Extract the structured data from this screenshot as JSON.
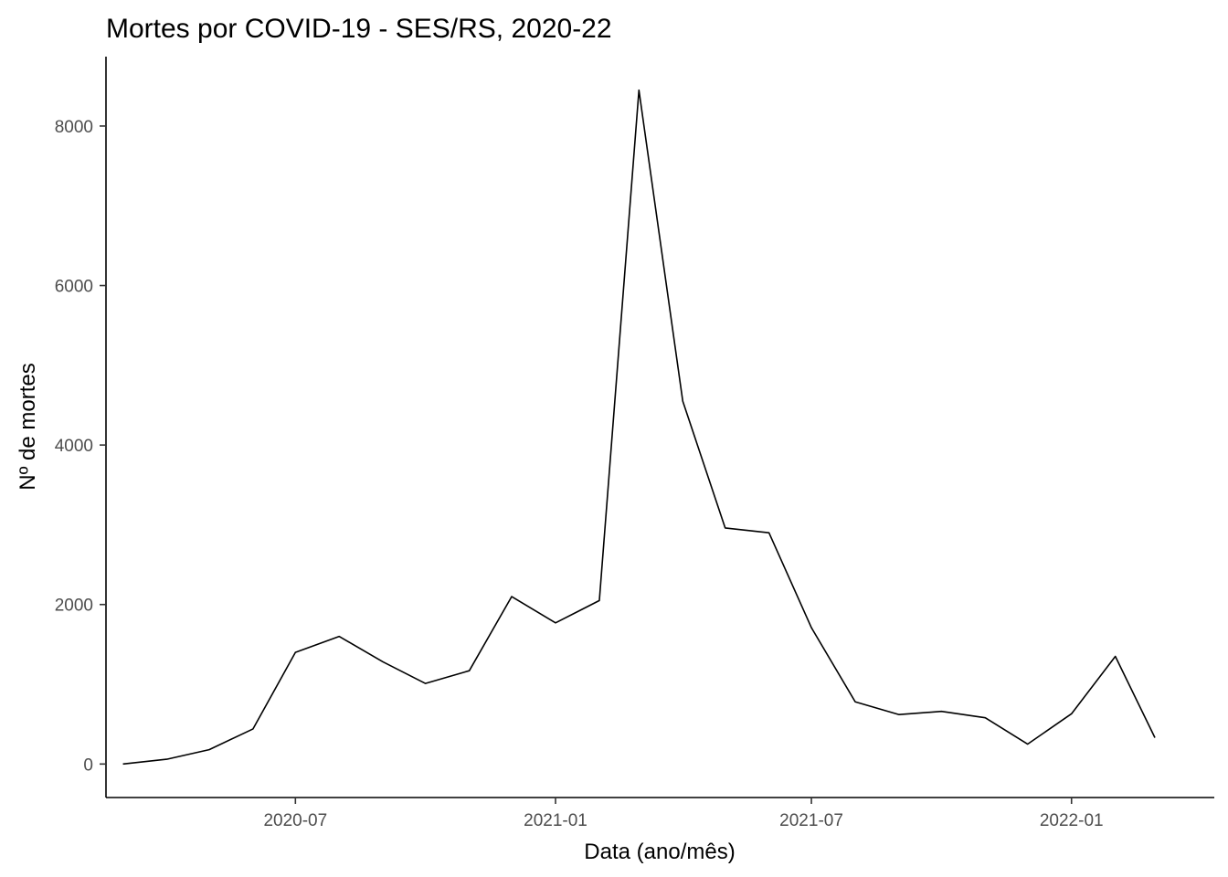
{
  "chart_data": {
    "type": "line",
    "title": "Mortes por COVID-19 - SES/RS, 2020-22",
    "xlabel": "Data (ano/mês)",
    "ylabel": "Nº de mortes",
    "x_ticks": [
      "2020-07",
      "2021-01",
      "2021-07",
      "2022-01"
    ],
    "y_ticks": [
      0,
      2000,
      4000,
      6000,
      8000
    ],
    "xlim": [
      "2020-02-18",
      "2022-04-12"
    ],
    "ylim": [
      -420,
      8870
    ],
    "grid": false,
    "legend": "none",
    "series": [
      {
        "x": [
          "2020-03-01",
          "2020-04-01",
          "2020-05-01",
          "2020-06-01",
          "2020-07-01",
          "2020-08-01",
          "2020-09-01",
          "2020-10-01",
          "2020-11-01",
          "2020-12-01",
          "2021-01-01",
          "2021-02-01",
          "2021-03-01",
          "2021-04-01",
          "2021-05-01",
          "2021-06-01",
          "2021-07-01",
          "2021-08-01",
          "2021-09-01",
          "2021-10-01",
          "2021-11-01",
          "2021-12-01",
          "2022-01-01",
          "2022-02-01",
          "2022-03-01"
        ],
        "values": [
          0,
          60,
          180,
          440,
          1400,
          1600,
          1280,
          1010,
          1170,
          2100,
          1770,
          2050,
          8450,
          4550,
          2960,
          2900,
          1710,
          780,
          620,
          660,
          580,
          250,
          630,
          1350,
          330
        ]
      }
    ]
  }
}
